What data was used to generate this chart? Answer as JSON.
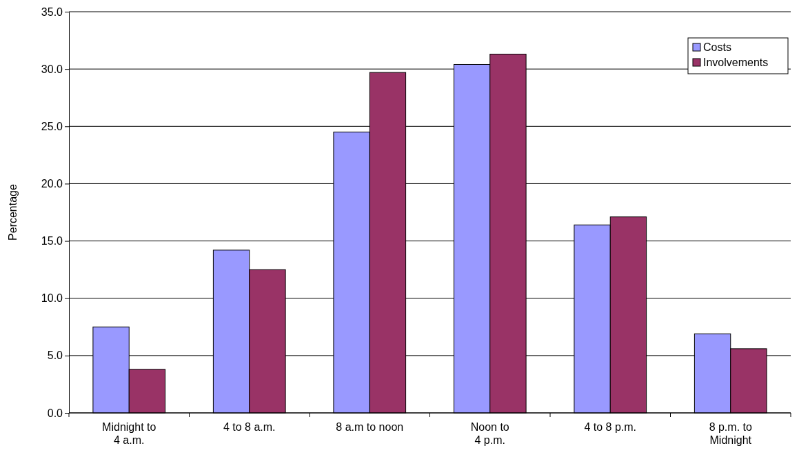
{
  "chart_data": {
    "type": "bar",
    "ylabel": "Percentage",
    "categories": [
      "Midnight to\n4 a.m.",
      "4 to 8 a.m.",
      "8 a.m to noon",
      "Noon to\n4 p.m.",
      "4 to 8 p.m.",
      "8 p.m. to\nMidnight"
    ],
    "series": [
      {
        "name": "Costs",
        "color": "#9999ff",
        "values": [
          7.5,
          14.2,
          24.5,
          30.4,
          16.4,
          6.9
        ]
      },
      {
        "name": "Involvements",
        "color": "#993366",
        "values": [
          3.8,
          12.5,
          29.7,
          31.3,
          17.1,
          5.6
        ]
      }
    ],
    "ylim": [
      0,
      35
    ],
    "yticks": [
      {
        "value": 0,
        "label": "0.0"
      },
      {
        "value": 5,
        "label": "5.0"
      },
      {
        "value": 10,
        "label": "10.0"
      },
      {
        "value": 15,
        "label": "15.0"
      },
      {
        "value": 20,
        "label": "20.0"
      },
      {
        "value": 25,
        "label": "25.0"
      },
      {
        "value": 30,
        "label": "30.0"
      },
      {
        "value": 35,
        "label": "35.0"
      }
    ],
    "grid": "y",
    "legend": "top right"
  }
}
